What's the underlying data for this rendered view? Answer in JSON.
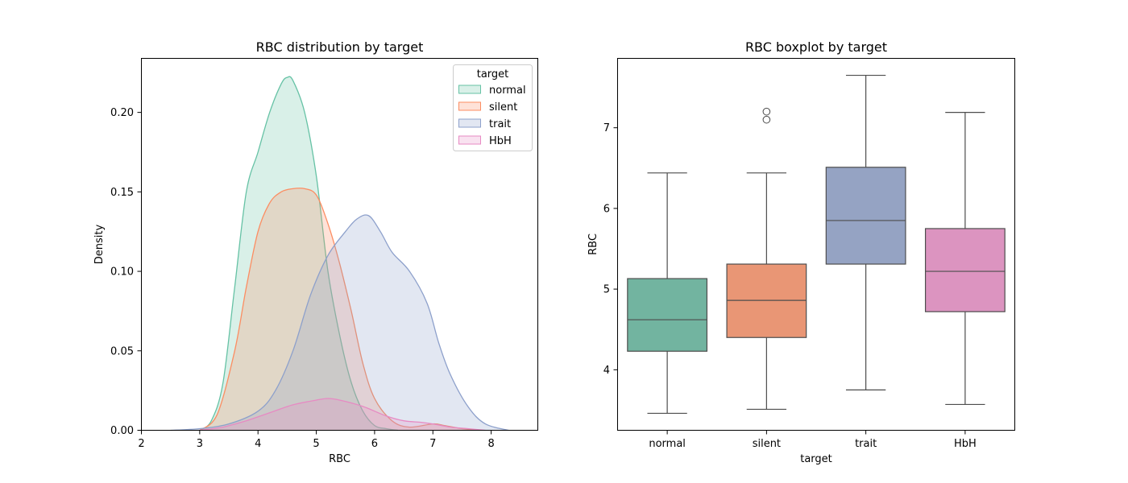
{
  "chart_data": [
    {
      "type": "area",
      "title": "RBC distribution by target",
      "xlabel": "RBC",
      "ylabel": "Density",
      "xlim": [
        2.0,
        8.8
      ],
      "ylim": [
        0.0,
        0.234
      ],
      "xticks": [
        "2",
        "3",
        "4",
        "5",
        "6",
        "7",
        "8"
      ],
      "yticks": [
        "0.00",
        "0.05",
        "0.10",
        "0.15",
        "0.20"
      ],
      "legend": {
        "title": "target",
        "placement": "top-right",
        "entries": [
          "normal",
          "silent",
          "trait",
          "HbH"
        ]
      },
      "series": [
        {
          "name": "normal",
          "color": "#66c2a5",
          "x": [
            3.0,
            3.2,
            3.4,
            3.6,
            3.8,
            4.0,
            4.2,
            4.4,
            4.5,
            4.6,
            4.8,
            5.0,
            5.2,
            5.4,
            5.6,
            5.8,
            6.0,
            6.2,
            6.4
          ],
          "y": [
            0.0,
            0.006,
            0.03,
            0.09,
            0.15,
            0.175,
            0.2,
            0.218,
            0.222,
            0.22,
            0.2,
            0.16,
            0.1,
            0.06,
            0.03,
            0.012,
            0.003,
            0.001,
            0.0
          ]
        },
        {
          "name": "silent",
          "color": "#fc8d62",
          "x": [
            3.0,
            3.3,
            3.6,
            3.8,
            4.0,
            4.2,
            4.4,
            4.6,
            4.8,
            5.0,
            5.2,
            5.4,
            5.6,
            5.8,
            6.0,
            6.3,
            6.6,
            7.0,
            7.2,
            7.5,
            7.8
          ],
          "y": [
            0.0,
            0.01,
            0.05,
            0.09,
            0.125,
            0.143,
            0.15,
            0.152,
            0.152,
            0.148,
            0.13,
            0.105,
            0.075,
            0.042,
            0.02,
            0.006,
            0.002,
            0.004,
            0.003,
            0.001,
            0.0
          ]
        },
        {
          "name": "trait",
          "color": "#8da0cb",
          "x": [
            2.5,
            3.0,
            3.5,
            4.0,
            4.3,
            4.6,
            4.9,
            5.2,
            5.5,
            5.7,
            5.9,
            6.1,
            6.3,
            6.6,
            6.9,
            7.1,
            7.3,
            7.6,
            7.9,
            8.3
          ],
          "y": [
            0.0,
            0.001,
            0.004,
            0.012,
            0.025,
            0.05,
            0.085,
            0.11,
            0.125,
            0.133,
            0.135,
            0.125,
            0.112,
            0.1,
            0.08,
            0.055,
            0.035,
            0.015,
            0.004,
            0.0
          ]
        },
        {
          "name": "HbH",
          "color": "#e78ac3",
          "x": [
            3.0,
            3.4,
            3.8,
            4.2,
            4.6,
            5.0,
            5.2,
            5.4,
            5.8,
            6.2,
            6.5,
            6.8,
            7.0,
            7.3,
            7.6,
            7.9
          ],
          "y": [
            0.0,
            0.002,
            0.006,
            0.011,
            0.016,
            0.019,
            0.02,
            0.019,
            0.015,
            0.009,
            0.006,
            0.005,
            0.004,
            0.002,
            0.001,
            0.0
          ]
        }
      ]
    },
    {
      "type": "box",
      "title": "RBC boxplot by target",
      "xlabel": "target",
      "ylabel": "RBC",
      "ylim": [
        3.25,
        7.86
      ],
      "yticks": [
        "4",
        "5",
        "6",
        "7"
      ],
      "categories": [
        "normal",
        "silent",
        "trait",
        "HbH"
      ],
      "boxes": [
        {
          "name": "normal",
          "color": "#72b4a0",
          "whisker_low": 3.46,
          "q1": 4.23,
          "median": 4.62,
          "q3": 5.13,
          "whisker_high": 6.44,
          "outliers": []
        },
        {
          "name": "silent",
          "color": "#e99675",
          "whisker_low": 3.51,
          "q1": 4.4,
          "median": 4.86,
          "q3": 5.31,
          "whisker_high": 6.44,
          "outliers": [
            7.1,
            7.2
          ]
        },
        {
          "name": "trait",
          "color": "#95a3c3",
          "whisker_low": 3.75,
          "q1": 5.31,
          "median": 5.85,
          "q3": 6.51,
          "whisker_high": 7.65,
          "outliers": []
        },
        {
          "name": "HbH",
          "color": "#dc94c0",
          "whisker_low": 3.57,
          "q1": 4.72,
          "median": 5.22,
          "q3": 5.75,
          "whisker_high": 7.19,
          "outliers": []
        }
      ]
    }
  ]
}
